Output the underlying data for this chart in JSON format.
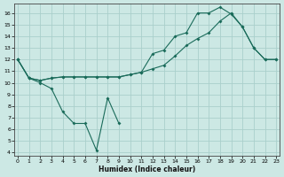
{
  "xlabel": "Humidex (Indice chaleur)",
  "background_color": "#cce8e4",
  "grid_color": "#aacfcb",
  "line_color": "#1a6b5a",
  "xlim": [
    -0.3,
    23.3
  ],
  "ylim": [
    3.7,
    16.8
  ],
  "yticks": [
    4,
    5,
    6,
    7,
    8,
    9,
    10,
    11,
    12,
    13,
    14,
    15,
    16
  ],
  "xticks": [
    0,
    1,
    2,
    3,
    4,
    5,
    6,
    7,
    8,
    9,
    10,
    11,
    12,
    13,
    14,
    15,
    16,
    17,
    18,
    19,
    20,
    21,
    22,
    23
  ],
  "line1_x": [
    0,
    1,
    2,
    3,
    4,
    5,
    6,
    7,
    8,
    9
  ],
  "line1_y": [
    12,
    10.4,
    10.0,
    9.5,
    7.5,
    6.5,
    6.5,
    4.2,
    8.7,
    6.5
  ],
  "line2_x": [
    0,
    1,
    2,
    3,
    4,
    5,
    6,
    7,
    8,
    9,
    10,
    11,
    12,
    13,
    14,
    15,
    16,
    17,
    18,
    19,
    20,
    21,
    22,
    23
  ],
  "line2_y": [
    12.0,
    10.4,
    10.2,
    10.4,
    10.5,
    10.5,
    10.5,
    10.5,
    10.5,
    10.5,
    10.7,
    10.9,
    12.5,
    12.8,
    14.0,
    14.3,
    16.0,
    16.0,
    16.5,
    15.9,
    14.8,
    13.0,
    12.0,
    12.0
  ],
  "line3_x": [
    0,
    1,
    2,
    3,
    4,
    5,
    6,
    7,
    8,
    9,
    10,
    11,
    12,
    13,
    14,
    15,
    16,
    17,
    18,
    19,
    20,
    21,
    22,
    23
  ],
  "line3_y": [
    12.0,
    10.4,
    10.2,
    10.4,
    10.5,
    10.5,
    10.5,
    10.5,
    10.5,
    10.5,
    10.7,
    10.9,
    11.2,
    11.5,
    12.3,
    13.2,
    13.8,
    14.3,
    15.3,
    16.0,
    14.8,
    13.0,
    12.0,
    12.0
  ]
}
